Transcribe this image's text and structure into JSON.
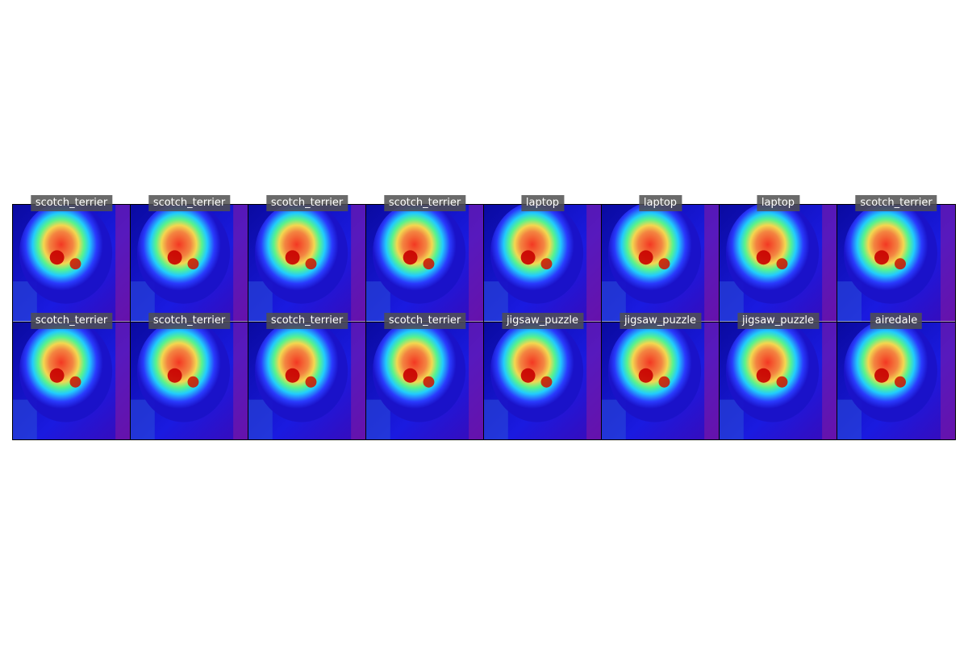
{
  "panels": [
    {
      "label": "scotch_terrier"
    },
    {
      "label": "scotch_terrier"
    },
    {
      "label": "scotch_terrier"
    },
    {
      "label": "scotch_terrier"
    },
    {
      "label": "laptop"
    },
    {
      "label": "laptop"
    },
    {
      "label": "laptop"
    },
    {
      "label": "scotch_terrier"
    },
    {
      "label": "scotch_terrier"
    },
    {
      "label": "scotch_terrier"
    },
    {
      "label": "scotch_terrier"
    },
    {
      "label": "scotch_terrier"
    },
    {
      "label": "jigsaw_puzzle"
    },
    {
      "label": "jigsaw_puzzle"
    },
    {
      "label": "jigsaw_puzzle"
    },
    {
      "label": "airedale"
    }
  ]
}
